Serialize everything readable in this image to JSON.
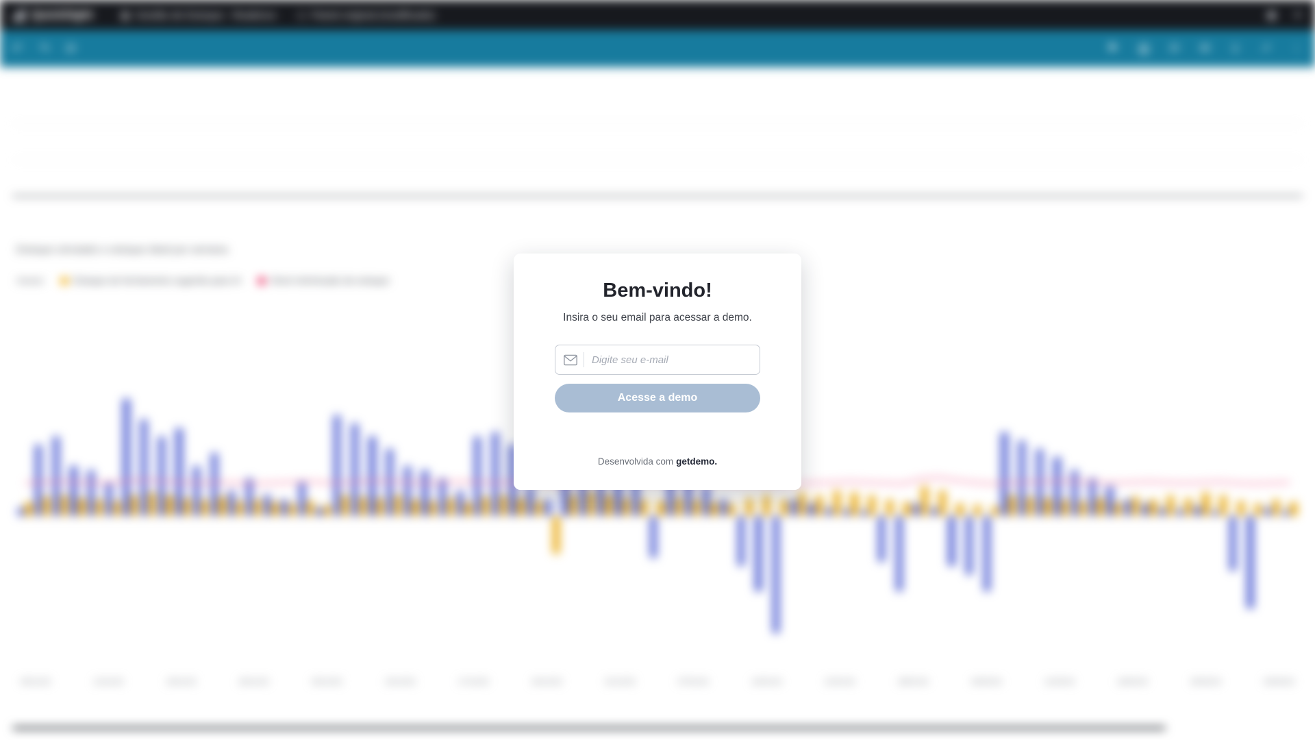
{
  "topbar": {
    "brand": "QuickSight",
    "breadcrumb_primary": "Gestão de Estoque - Reabince",
    "breadcrumb_secondary": "Painel original (modificado)",
    "actions": [
      {
        "name": "notifications-icon",
        "glyph": "◉"
      },
      {
        "name": "user-menu-icon",
        "glyph": "≡"
      }
    ]
  },
  "toolbar": {
    "left_icons": [
      {
        "name": "undo-icon",
        "glyph": "↶"
      },
      {
        "name": "redo-icon",
        "glyph": "↷"
      },
      {
        "name": "reset-icon",
        "glyph": "⟳"
      }
    ],
    "right_icons": [
      {
        "name": "bookmark-icon",
        "glyph": "⚑"
      },
      {
        "name": "filter-icon",
        "glyph": "▥"
      },
      {
        "name": "refresh-icon",
        "glyph": "⟳"
      },
      {
        "name": "email-report-icon",
        "glyph": "✉"
      },
      {
        "name": "export-icon",
        "glyph": "⇓"
      },
      {
        "name": "share-icon",
        "glyph": "↗"
      },
      {
        "name": "overflow-menu-icon",
        "glyph": "⋮"
      }
    ]
  },
  "chart": {
    "title": "Estoque simulado e estoque ideal por semana",
    "legend_intro": "meses",
    "legend": [
      {
        "label": "Estoque de fechamento sugerido para IA",
        "color": "#f0ae12"
      },
      {
        "label": "Nível minimizado de estoque",
        "color": "#ea3568"
      }
    ],
    "x_labels": [
      "05/11/23",
      "12/11/23",
      "19/11/23",
      "26/11/23",
      "03/12/23",
      "10/12/23",
      "17/12/23",
      "24/12/23",
      "31/12/23",
      "07/01/24",
      "14/01/24",
      "21/01/24",
      "28/01/24",
      "04/02/24",
      "11/02/24",
      "18/02/24",
      "25/02/24",
      "03/03/24"
    ],
    "chart_data": {
      "type": "bar",
      "note": "values are estimated relative units (positive = above baseline, negative = below); line series rides near baseline",
      "series": [
        {
          "name": "Estoque simulado",
          "color": "#5d6cd6",
          "values": [
            12,
            104,
            116,
            73,
            67,
            49,
            171,
            141,
            116,
            128,
            73,
            92,
            37,
            55,
            31,
            24,
            49,
            12,
            147,
            135,
            116,
            98,
            73,
            67,
            55,
            37,
            116,
            122,
            104,
            43,
            24,
            110,
            104,
            98,
            92,
            73,
            -61,
            92,
            67,
            43,
            24,
            -73,
            -110,
            -171,
            24,
            18,
            12,
            10,
            8,
            -67,
            -110,
            18,
            12,
            -73,
            -86,
            -110,
            122,
            110,
            98,
            86,
            67,
            55,
            43,
            24,
            18,
            12,
            10,
            14,
            8,
            -80,
            -135,
            12,
            8
          ]
        },
        {
          "name": "Estoque de fechamento sugerido para IA",
          "color": "#e9ab16",
          "values": [
            20,
            28,
            30,
            26,
            24,
            22,
            30,
            34,
            30,
            26,
            24,
            28,
            22,
            24,
            20,
            18,
            22,
            16,
            30,
            28,
            26,
            30,
            24,
            22,
            26,
            20,
            28,
            30,
            26,
            22,
            -55,
            30,
            34,
            30,
            26,
            24,
            22,
            26,
            24,
            20,
            18,
            26,
            30,
            24,
            34,
            30,
            37,
            34,
            30,
            24,
            20,
            43,
            37,
            18,
            16,
            14,
            30,
            28,
            26,
            24,
            22,
            26,
            20,
            28,
            24,
            30,
            26,
            34,
            30,
            22,
            18,
            24,
            20
          ]
        },
        {
          "name": "Nível minimizado de estoque",
          "color": "#f27ba1",
          "type": "line",
          "values": [
            48,
            49,
            50,
            49,
            48,
            49,
            51,
            52,
            50,
            49,
            48,
            49,
            48,
            47,
            48,
            49,
            50,
            49,
            48,
            50,
            51,
            50,
            49,
            48,
            49,
            50,
            49,
            48,
            49,
            50,
            46,
            47,
            49,
            50,
            51,
            50,
            49,
            48,
            47,
            48,
            49,
            48,
            47,
            46,
            47,
            48,
            49,
            50,
            49,
            48,
            47,
            54,
            56,
            52,
            49,
            47,
            48,
            49,
            50,
            51,
            50,
            49,
            48,
            49,
            50,
            49,
            48,
            49,
            50,
            48,
            47,
            48,
            49
          ]
        }
      ]
    }
  },
  "modal": {
    "title": "Bem-vindo!",
    "subtitle": "Insira o seu email para acessar a demo.",
    "email_placeholder": "Digite seu e-mail",
    "submit_label": "Acesse a demo",
    "footer_prefix": "Desenvolvida com",
    "footer_brand": "getdemo."
  },
  "colors": {
    "topbar_bg": "#17191e",
    "toolbar_bg": "#177b9e",
    "bar_blue": "#5d6cd6",
    "bar_yellow": "#e9ab16",
    "line_pink": "#f27ba1",
    "button_bg": "#a9bdd4"
  }
}
